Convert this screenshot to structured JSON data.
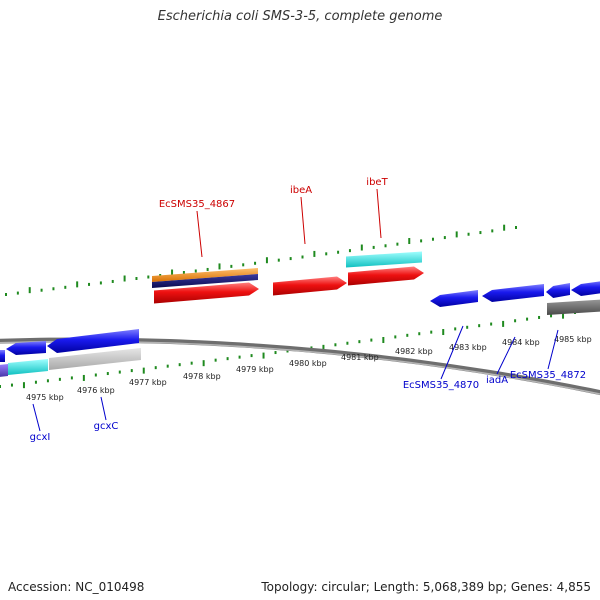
{
  "title": "Escherichia coli SMS-3-5, complete genome",
  "footer": {
    "accession": "Accession: NC_010498",
    "stats": "Topology: circular; Length: 5,068,389 bp; Genes: 4,855"
  },
  "colors": {
    "background": "#ffffff",
    "backbone": "#8a8a8a",
    "tick": "#1f8a1f",
    "forward_gene": "#ee1111",
    "reverse_gene": "#1a1aee",
    "forward_label": "#cc0000",
    "reverse_label": "#0000cc",
    "orange_feature": "#f08c1a",
    "navy_feature": "#141478",
    "cyan_feature": "#22dddd",
    "gray_feature": "#c4c4c4",
    "dark_gray_feature": "#6a6a6a",
    "purple_feature": "#6a4fcf"
  },
  "axis": {
    "tick_labels": [
      "4975 kbp",
      "4976 kbp",
      "4977 kbp",
      "4978 kbp",
      "4979 kbp",
      "4980 kbp",
      "4981 kbp",
      "4982 kbp",
      "4983 kbp",
      "4984 kbp",
      "4985 kbp"
    ]
  },
  "forward_gene_labels": [
    "EcSMS35_4867",
    "ibeA",
    "ibeT"
  ],
  "reverse_gene_labels": [
    "gcxI",
    "gcxC",
    "EcSMS35_4870",
    "iadA",
    "EcSMS35_4872"
  ]
}
